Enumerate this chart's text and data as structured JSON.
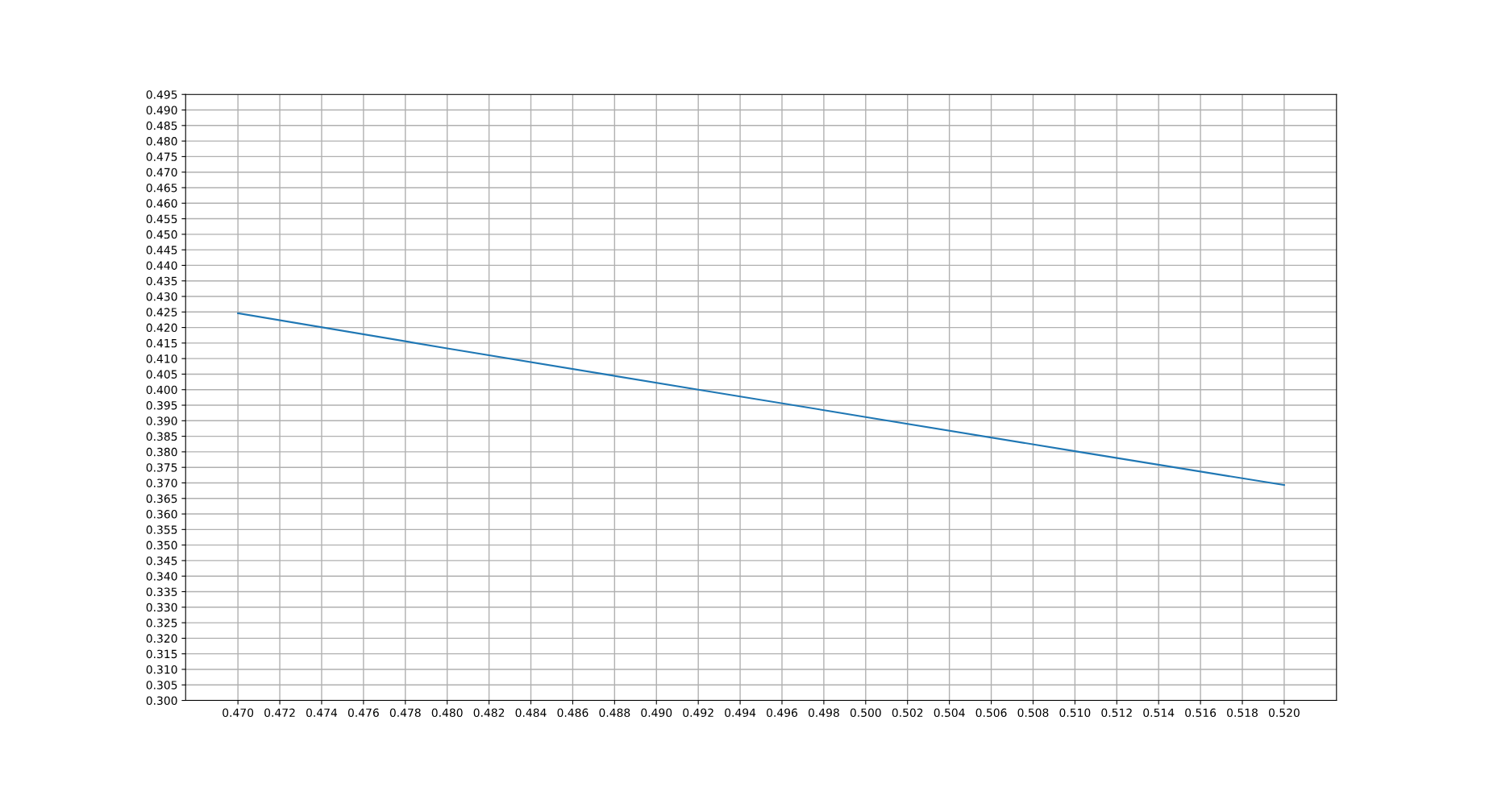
{
  "chart_data": {
    "type": "line",
    "x": [
      0.47,
      0.48,
      0.492,
      0.5,
      0.51,
      0.52
    ],
    "series": [
      {
        "color": "#1f77b4",
        "values": [
          0.4246,
          0.4133,
          0.4,
          0.3912,
          0.3802,
          0.3693
        ]
      }
    ],
    "xlim": [
      0.4675,
      0.5225
    ],
    "ylim": [
      0.3,
      0.495
    ],
    "xticks": [
      {
        "value": 0.47,
        "label": "0.470"
      },
      {
        "value": 0.472,
        "label": "0.472"
      },
      {
        "value": 0.474,
        "label": "0.474"
      },
      {
        "value": 0.476,
        "label": "0.476"
      },
      {
        "value": 0.478,
        "label": "0.478"
      },
      {
        "value": 0.48,
        "label": "0.480"
      },
      {
        "value": 0.482,
        "label": "0.482"
      },
      {
        "value": 0.484,
        "label": "0.484"
      },
      {
        "value": 0.486,
        "label": "0.486"
      },
      {
        "value": 0.488,
        "label": "0.488"
      },
      {
        "value": 0.49,
        "label": "0.490"
      },
      {
        "value": 0.492,
        "label": "0.492"
      },
      {
        "value": 0.494,
        "label": "0.494"
      },
      {
        "value": 0.496,
        "label": "0.496"
      },
      {
        "value": 0.498,
        "label": "0.498"
      },
      {
        "value": 0.5,
        "label": "0.500"
      },
      {
        "value": 0.502,
        "label": "0.502"
      },
      {
        "value": 0.504,
        "label": "0.504"
      },
      {
        "value": 0.506,
        "label": "0.506"
      },
      {
        "value": 0.508,
        "label": "0.508"
      },
      {
        "value": 0.51,
        "label": "0.510"
      },
      {
        "value": 0.512,
        "label": "0.512"
      },
      {
        "value": 0.514,
        "label": "0.514"
      },
      {
        "value": 0.516,
        "label": "0.516"
      },
      {
        "value": 0.518,
        "label": "0.518"
      },
      {
        "value": 0.52,
        "label": "0.520"
      }
    ],
    "yticks": [
      {
        "value": 0.3,
        "label": "0.300"
      },
      {
        "value": 0.305,
        "label": "0.305"
      },
      {
        "value": 0.31,
        "label": "0.310"
      },
      {
        "value": 0.315,
        "label": "0.315"
      },
      {
        "value": 0.32,
        "label": "0.320"
      },
      {
        "value": 0.325,
        "label": "0.325"
      },
      {
        "value": 0.33,
        "label": "0.330"
      },
      {
        "value": 0.335,
        "label": "0.335"
      },
      {
        "value": 0.34,
        "label": "0.340"
      },
      {
        "value": 0.345,
        "label": "0.345"
      },
      {
        "value": 0.35,
        "label": "0.350"
      },
      {
        "value": 0.355,
        "label": "0.355"
      },
      {
        "value": 0.36,
        "label": "0.360"
      },
      {
        "value": 0.365,
        "label": "0.365"
      },
      {
        "value": 0.37,
        "label": "0.370"
      },
      {
        "value": 0.375,
        "label": "0.375"
      },
      {
        "value": 0.38,
        "label": "0.380"
      },
      {
        "value": 0.385,
        "label": "0.385"
      },
      {
        "value": 0.39,
        "label": "0.390"
      },
      {
        "value": 0.395,
        "label": "0.395"
      },
      {
        "value": 0.4,
        "label": "0.400"
      },
      {
        "value": 0.405,
        "label": "0.405"
      },
      {
        "value": 0.41,
        "label": "0.410"
      },
      {
        "value": 0.415,
        "label": "0.415"
      },
      {
        "value": 0.42,
        "label": "0.420"
      },
      {
        "value": 0.425,
        "label": "0.425"
      },
      {
        "value": 0.43,
        "label": "0.430"
      },
      {
        "value": 0.435,
        "label": "0.435"
      },
      {
        "value": 0.44,
        "label": "0.440"
      },
      {
        "value": 0.445,
        "label": "0.445"
      },
      {
        "value": 0.45,
        "label": "0.450"
      },
      {
        "value": 0.455,
        "label": "0.455"
      },
      {
        "value": 0.46,
        "label": "0.460"
      },
      {
        "value": 0.465,
        "label": "0.465"
      },
      {
        "value": 0.47,
        "label": "0.470"
      },
      {
        "value": 0.475,
        "label": "0.475"
      },
      {
        "value": 0.48,
        "label": "0.480"
      },
      {
        "value": 0.485,
        "label": "0.485"
      },
      {
        "value": 0.49,
        "label": "0.490"
      },
      {
        "value": 0.495,
        "label": "0.495"
      }
    ],
    "grid": true,
    "marker": "none",
    "line_style": "solid"
  }
}
